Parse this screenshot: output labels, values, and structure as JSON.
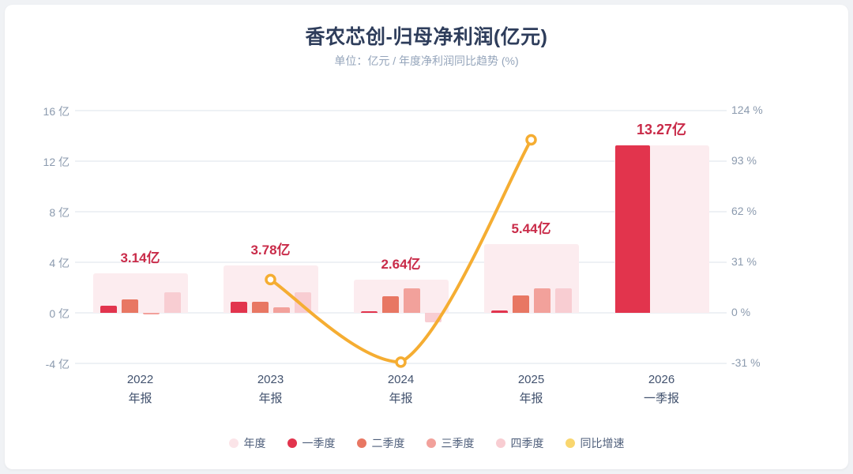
{
  "title": "香农芯创-归母净利润(亿元)",
  "subtitle": "单位：亿元 / 年度净利润同比趋势 (%)",
  "chart_data": {
    "type": "bar",
    "title": "香农芯创-归母净利润(亿元)",
    "subtitle": "单位：亿元 / 年度净利润同比趋势 (%)",
    "grid": true,
    "legend_position": "bottom",
    "categories": [
      {
        "line1": "2022",
        "line2": "年报"
      },
      {
        "line1": "2023",
        "line2": "年报"
      },
      {
        "line1": "2024",
        "line2": "年报"
      },
      {
        "line1": "2025",
        "line2": "年报"
      },
      {
        "line1": "2026",
        "line2": "一季报"
      }
    ],
    "y_axis_left": {
      "range": [
        -4,
        16
      ],
      "ticks": [
        {
          "label": "16 亿",
          "value": 16
        },
        {
          "label": "12 亿",
          "value": 12
        },
        {
          "label": "8 亿",
          "value": 8
        },
        {
          "label": "4 亿",
          "value": 4
        },
        {
          "label": "0 亿",
          "value": 0
        },
        {
          "label": "-4 亿",
          "value": -4
        }
      ]
    },
    "y_axis_right": {
      "range": [
        -31,
        124
      ],
      "ticks": [
        {
          "label": "124 %",
          "value": 124
        },
        {
          "label": "93 %",
          "value": 93
        },
        {
          "label": "62 %",
          "value": 62
        },
        {
          "label": "31 %",
          "value": 31
        },
        {
          "label": "0 %",
          "value": 0
        },
        {
          "label": "-31 %",
          "value": -31
        }
      ]
    },
    "annual_series": {
      "name": "年度",
      "color": "#fcecef",
      "values": [
        3.14,
        3.78,
        2.64,
        5.44,
        13.27
      ],
      "labels": [
        "3.14亿",
        "3.78亿",
        "2.64亿",
        "5.44亿",
        "13.27亿"
      ]
    },
    "quarter_series": [
      {
        "name": "一季度",
        "color": "#e2344d",
        "values": [
          0.55,
          0.85,
          0.12,
          0.2,
          13.27
        ]
      },
      {
        "name": "二季度",
        "color": "#e87763",
        "values": [
          1.05,
          0.85,
          1.32,
          1.4,
          null
        ]
      },
      {
        "name": "三季度",
        "color": "#f2a19b",
        "values": [
          -0.1,
          0.45,
          1.95,
          1.92,
          null
        ]
      },
      {
        "name": "四季度",
        "color": "#f8cdd2",
        "values": [
          1.64,
          1.63,
          -0.75,
          1.92,
          null
        ]
      }
    ],
    "growth_series": {
      "name": "同比增速",
      "color": "#f5ad32",
      "marker_fill": "#ffffff",
      "values": [
        null,
        20.4,
        -30.2,
        106.1,
        null
      ]
    }
  },
  "legend": {
    "items": [
      {
        "key": "annual",
        "label": "年度",
        "color": "#fbe4e8"
      },
      {
        "key": "q1",
        "label": "一季度",
        "color": "#e2344d"
      },
      {
        "key": "q2",
        "label": "二季度",
        "color": "#e87763"
      },
      {
        "key": "q3",
        "label": "三季度",
        "color": "#f2a19b"
      },
      {
        "key": "q4",
        "label": "四季度",
        "color": "#f8cdd2"
      },
      {
        "key": "growth",
        "label": "同比增速",
        "color": "#f9d66e"
      }
    ]
  }
}
